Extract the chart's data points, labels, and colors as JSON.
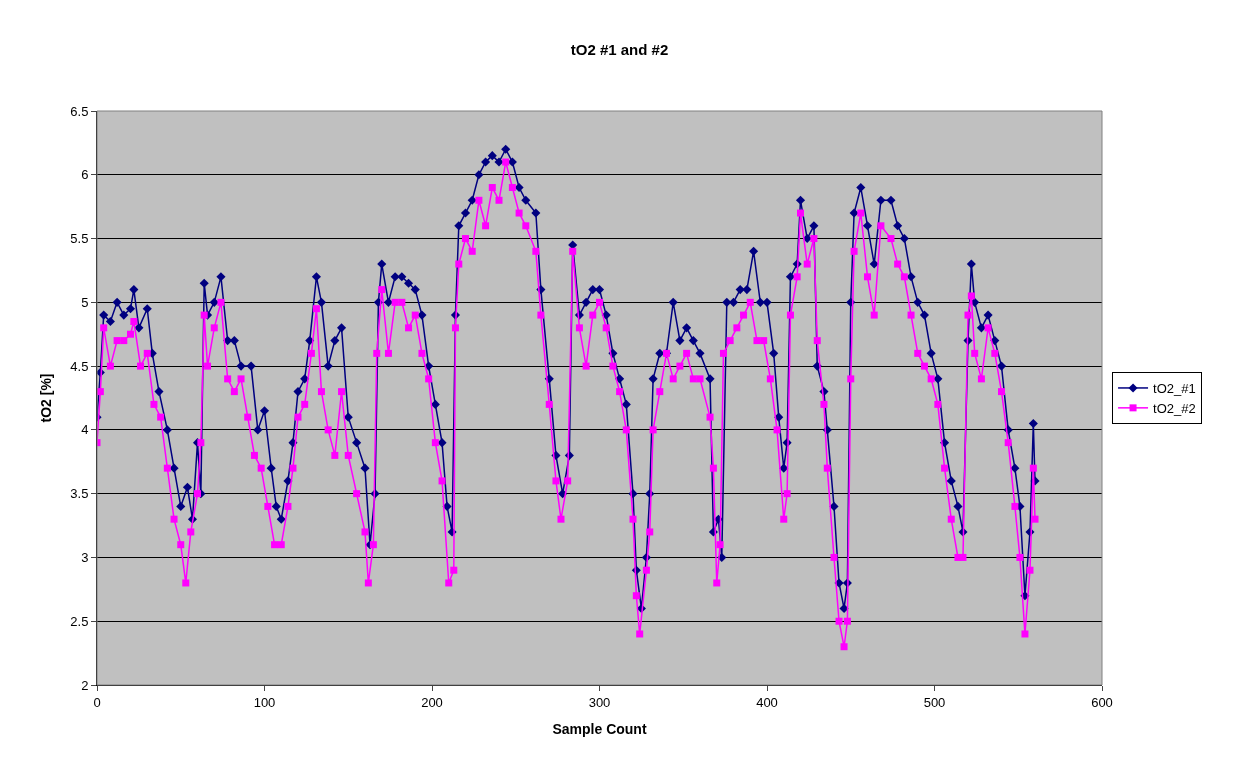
{
  "chart_data": {
    "type": "line",
    "title": "tO2 #1 and #2",
    "xlabel": "Sample Count",
    "ylabel": "tO2 [%]",
    "xlim": [
      0,
      600
    ],
    "xticks": [
      0,
      100,
      200,
      300,
      400,
      500,
      600
    ],
    "ylim": [
      2,
      6.5
    ],
    "yticks": [
      2,
      2.5,
      3,
      3.5,
      4,
      4.5,
      5,
      5.5,
      6,
      6.5
    ],
    "grid": "y",
    "legend": "right",
    "series": [
      {
        "name": "tO2_#1",
        "color": "#000080",
        "marker": "diamond",
        "x": [
          0,
          2,
          4,
          8,
          12,
          16,
          20,
          22,
          25,
          30,
          33,
          37,
          42,
          46,
          50,
          54,
          57,
          60,
          62,
          64,
          66,
          70,
          74,
          78,
          82,
          86,
          92,
          96,
          100,
          104,
          107,
          110,
          114,
          117,
          120,
          124,
          127,
          131,
          134,
          138,
          142,
          146,
          150,
          155,
          160,
          163,
          166,
          168,
          170,
          174,
          178,
          182,
          186,
          190,
          194,
          198,
          202,
          206,
          209,
          212,
          214,
          216,
          220,
          224,
          228,
          232,
          236,
          240,
          244,
          248,
          252,
          256,
          262,
          265,
          270,
          274,
          278,
          282,
          284,
          288,
          292,
          296,
          300,
          304,
          308,
          312,
          316,
          320,
          322,
          325,
          328,
          330,
          332,
          336,
          340,
          344,
          348,
          352,
          356,
          360,
          366,
          368,
          371,
          373,
          376,
          380,
          384,
          388,
          392,
          396,
          400,
          404,
          407,
          410,
          412,
          414,
          418,
          420,
          424,
          428,
          430,
          434,
          436,
          440,
          443,
          446,
          448,
          450,
          452,
          456,
          460,
          464,
          468,
          474,
          478,
          482,
          486,
          490,
          494,
          498,
          502,
          506,
          510,
          514,
          517,
          520,
          522,
          524,
          528,
          532,
          536,
          540,
          544,
          548,
          551,
          554,
          557,
          559,
          560
        ],
        "values": [
          4.1,
          4.45,
          4.9,
          4.85,
          5.0,
          4.9,
          4.95,
          5.1,
          4.8,
          4.95,
          4.6,
          4.3,
          4.0,
          3.7,
          3.4,
          3.55,
          3.3,
          3.9,
          3.5,
          5.15,
          4.9,
          5.0,
          5.2,
          4.7,
          4.7,
          4.5,
          4.5,
          4.0,
          4.15,
          3.7,
          3.4,
          3.3,
          3.6,
          3.9,
          4.3,
          4.4,
          4.7,
          5.2,
          5.0,
          4.5,
          4.7,
          4.8,
          4.1,
          3.9,
          3.7,
          3.1,
          3.5,
          5.0,
          5.3,
          5.0,
          5.2,
          5.2,
          5.15,
          5.1,
          4.9,
          4.5,
          4.2,
          3.9,
          3.4,
          3.2,
          4.9,
          5.6,
          5.7,
          5.8,
          6.0,
          6.1,
          6.15,
          6.1,
          6.2,
          6.1,
          5.9,
          5.8,
          5.7,
          5.1,
          4.4,
          3.8,
          3.5,
          3.8,
          5.45,
          4.9,
          5.0,
          5.1,
          5.1,
          4.9,
          4.6,
          4.4,
          4.2,
          3.5,
          2.9,
          2.6,
          3.0,
          3.5,
          4.4,
          4.6,
          4.6,
          5.0,
          4.7,
          4.8,
          4.7,
          4.6,
          4.4,
          3.2,
          3.3,
          3.0,
          5.0,
          5.0,
          5.1,
          5.1,
          5.4,
          5.0,
          5.0,
          4.6,
          4.1,
          3.7,
          3.9,
          5.2,
          5.3,
          5.8,
          5.5,
          5.6,
          4.5,
          4.3,
          4.0,
          3.4,
          2.8,
          2.6,
          2.8,
          5.0,
          5.7,
          5.9,
          5.6,
          5.3,
          5.8,
          5.8,
          5.6,
          5.5,
          5.2,
          5.0,
          4.9,
          4.6,
          4.4,
          3.9,
          3.6,
          3.4,
          3.2,
          4.7,
          5.3,
          5.0,
          4.8,
          4.9,
          4.7,
          4.5,
          4.0,
          3.7,
          3.4,
          2.7,
          3.2,
          4.05,
          3.6
        ]
      },
      {
        "name": "tO2_#2",
        "color": "#ff00ff",
        "marker": "square",
        "x": [
          0,
          2,
          4,
          8,
          12,
          16,
          20,
          22,
          26,
          30,
          34,
          38,
          42,
          46,
          50,
          53,
          56,
          60,
          62,
          64,
          66,
          70,
          74,
          78,
          82,
          86,
          90,
          94,
          98,
          102,
          106,
          110,
          114,
          117,
          120,
          124,
          128,
          131,
          134,
          138,
          142,
          146,
          150,
          155,
          160,
          162,
          165,
          167,
          170,
          174,
          178,
          182,
          186,
          190,
          194,
          198,
          202,
          206,
          210,
          213,
          214,
          216,
          220,
          224,
          228,
          232,
          236,
          240,
          244,
          248,
          252,
          256,
          262,
          265,
          270,
          274,
          277,
          281,
          284,
          288,
          292,
          296,
          300,
          304,
          308,
          312,
          316,
          320,
          322,
          324,
          328,
          330,
          332,
          336,
          340,
          344,
          348,
          352,
          356,
          360,
          366,
          368,
          370,
          372,
          374,
          378,
          382,
          386,
          390,
          394,
          398,
          402,
          406,
          410,
          412,
          414,
          418,
          420,
          424,
          428,
          430,
          434,
          436,
          440,
          443,
          446,
          448,
          450,
          452,
          456,
          460,
          464,
          468,
          474,
          478,
          482,
          486,
          490,
          494,
          498,
          502,
          506,
          510,
          514,
          517,
          520,
          522,
          524,
          528,
          532,
          536,
          540,
          544,
          548,
          551,
          554,
          557,
          559,
          560
        ],
        "values": [
          3.9,
          4.3,
          4.8,
          4.5,
          4.7,
          4.7,
          4.75,
          4.85,
          4.5,
          4.6,
          4.2,
          4.1,
          3.7,
          3.3,
          3.1,
          2.8,
          3.2,
          3.5,
          3.9,
          4.9,
          4.5,
          4.8,
          5.0,
          4.4,
          4.3,
          4.4,
          4.1,
          3.8,
          3.7,
          3.4,
          3.1,
          3.1,
          3.4,
          3.7,
          4.1,
          4.2,
          4.6,
          4.95,
          4.3,
          4.0,
          3.8,
          4.3,
          3.8,
          3.5,
          3.2,
          2.8,
          3.1,
          4.6,
          5.1,
          4.6,
          5.0,
          5.0,
          4.8,
          4.9,
          4.6,
          4.4,
          3.9,
          3.6,
          2.8,
          2.9,
          4.8,
          5.3,
          5.5,
          5.4,
          5.8,
          5.6,
          5.9,
          5.8,
          6.1,
          5.9,
          5.7,
          5.6,
          5.4,
          4.9,
          4.2,
          3.6,
          3.3,
          3.6,
          5.4,
          4.8,
          4.5,
          4.9,
          5.0,
          4.8,
          4.5,
          4.3,
          4.0,
          3.3,
          2.7,
          2.4,
          2.9,
          3.2,
          4.0,
          4.3,
          4.6,
          4.4,
          4.5,
          4.6,
          4.4,
          4.4,
          4.1,
          3.7,
          2.8,
          3.1,
          4.6,
          4.7,
          4.8,
          4.9,
          5.0,
          4.7,
          4.7,
          4.4,
          4.0,
          3.3,
          3.5,
          4.9,
          5.2,
          5.7,
          5.3,
          5.5,
          4.7,
          4.2,
          3.7,
          3.0,
          2.5,
          2.3,
          2.5,
          4.4,
          5.4,
          5.7,
          5.2,
          4.9,
          5.6,
          5.5,
          5.3,
          5.2,
          4.9,
          4.6,
          4.5,
          4.4,
          4.2,
          3.7,
          3.3,
          3.0,
          3.0,
          4.9,
          5.05,
          4.6,
          4.4,
          4.8,
          4.6,
          4.3,
          3.9,
          3.4,
          3.0,
          2.4,
          2.9,
          3.7,
          3.3
        ]
      }
    ]
  }
}
